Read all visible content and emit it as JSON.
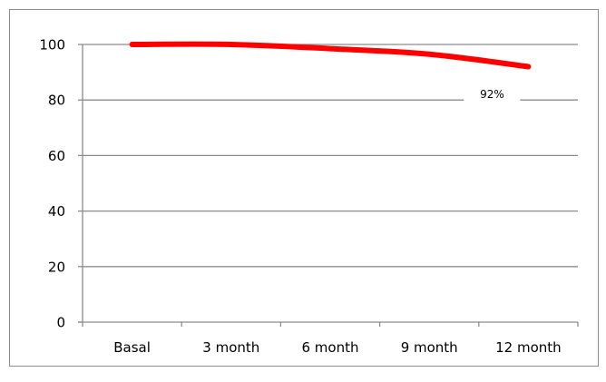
{
  "chart_data": {
    "type": "line",
    "title": "",
    "xlabel": "",
    "ylabel": "",
    "categories": [
      "Basal",
      "3 month",
      "6 month",
      "9 month",
      "12 month"
    ],
    "series": [
      {
        "values": [
          100,
          100,
          98.5,
          96.5,
          92
        ],
        "color": "#ff0000"
      }
    ],
    "ylim": [
      0,
      100
    ],
    "yticks": [
      "0",
      "20",
      "40",
      "60",
      "80",
      "100"
    ],
    "grid": true,
    "legend": "none",
    "annotations": [
      {
        "text": "92%",
        "series": 0,
        "index": 4
      }
    ],
    "colors": {
      "line": "#ff0000",
      "grid": "#8c8c8c",
      "axis": "#8c8c8c"
    }
  }
}
